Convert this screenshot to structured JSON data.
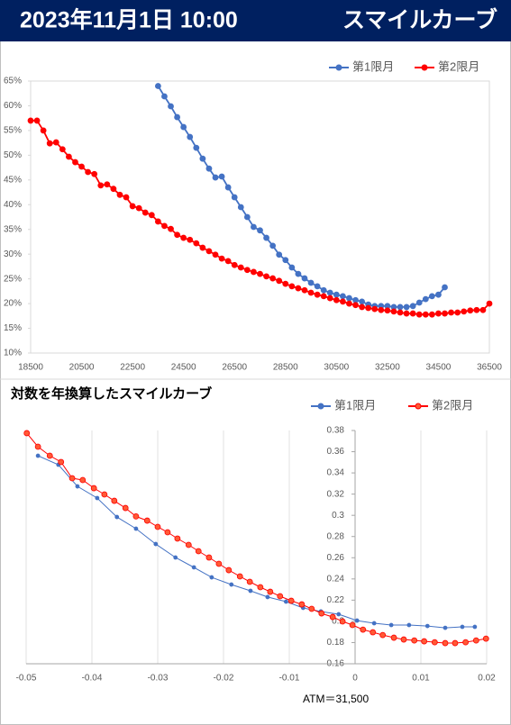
{
  "header": {
    "date": "2023年11月1日 10:00",
    "title": "スマイルカーブ"
  },
  "chart_data": [
    {
      "type": "line",
      "xlim": [
        18500,
        36500
      ],
      "xticks": [
        18500,
        20500,
        22500,
        24500,
        26500,
        28500,
        30500,
        32500,
        34500,
        36500
      ],
      "ylim": [
        10,
        65
      ],
      "yticks": [
        {
          "value": 10,
          "label": "10%"
        },
        {
          "value": 15,
          "label": "15%"
        },
        {
          "value": 20,
          "label": "20%"
        },
        {
          "value": 25,
          "label": "25%"
        },
        {
          "value": 30,
          "label": "30%"
        },
        {
          "value": 35,
          "label": "35%"
        },
        {
          "value": 40,
          "label": "40%"
        },
        {
          "value": 45,
          "label": "45%"
        },
        {
          "value": 50,
          "label": "50%"
        },
        {
          "value": 55,
          "label": "55%"
        },
        {
          "value": 60,
          "label": "60%"
        },
        {
          "value": 65,
          "label": "65%"
        }
      ],
      "grid": false,
      "legend": "top-right",
      "series": [
        {
          "name": "第1限月",
          "color": "#4472c4",
          "x": [
            23500,
            23750,
            24000,
            24250,
            24500,
            24750,
            25000,
            25250,
            25500,
            25750,
            26000,
            26250,
            26500,
            26750,
            27000,
            27250,
            27500,
            27750,
            28000,
            28250,
            28500,
            28750,
            29000,
            29250,
            29500,
            29750,
            30000,
            30250,
            30500,
            30750,
            31000,
            31250,
            31500,
            31750,
            32000,
            32250,
            32500,
            32750,
            33000,
            33250,
            33500,
            33750,
            34000,
            34250,
            34500,
            34750
          ],
          "values": [
            64,
            61.9,
            59.9,
            57.7,
            55.7,
            53.7,
            51.5,
            49.3,
            47.3,
            45.5,
            45.7,
            43.5,
            41.5,
            39.5,
            37.5,
            35.5,
            34.8,
            33.3,
            31.7,
            29.9,
            28.8,
            27.3,
            26,
            25.1,
            24.2,
            23.5,
            22.7,
            22.2,
            21.8,
            21.5,
            21.1,
            20.7,
            20.4,
            19.8,
            19.5,
            19.5,
            19.5,
            19.3,
            19.3,
            19.3,
            19.5,
            20.2,
            20.9,
            21.5,
            21.8,
            23.3
          ]
        },
        {
          "name": "第2限月",
          "color": "#ff0000",
          "x": [
            18500,
            18750,
            19000,
            19250,
            19500,
            19750,
            20000,
            20250,
            20500,
            20750,
            21000,
            21250,
            21500,
            21750,
            22000,
            22250,
            22500,
            22750,
            23000,
            23250,
            23500,
            23750,
            24000,
            24250,
            24500,
            24750,
            25000,
            25250,
            25500,
            25750,
            26000,
            26250,
            26500,
            26750,
            27000,
            27250,
            27500,
            27750,
            28000,
            28250,
            28500,
            28750,
            29000,
            29250,
            29500,
            29750,
            30000,
            30250,
            30500,
            30750,
            31000,
            31250,
            31500,
            31750,
            32000,
            32250,
            32500,
            32750,
            33000,
            33250,
            33500,
            33750,
            34000,
            34250,
            34500,
            34750,
            35000,
            35250,
            35500,
            35750,
            36000,
            36250,
            36500
          ],
          "values": [
            57,
            57,
            55,
            52.4,
            52.6,
            51.2,
            49.7,
            48.6,
            47.7,
            46.6,
            46.2,
            43.9,
            44.1,
            43.2,
            42,
            41.5,
            39.7,
            39.3,
            38.4,
            37.9,
            36.6,
            35.7,
            35.1,
            33.9,
            33.3,
            32.9,
            32.2,
            31.3,
            30.6,
            29.9,
            29.1,
            28.6,
            27.8,
            27.3,
            26.8,
            26.4,
            26,
            25.5,
            25.1,
            24.6,
            24,
            23.5,
            23.1,
            22.7,
            22.2,
            21.8,
            21.5,
            21.1,
            20.7,
            20.4,
            20,
            19.7,
            19.3,
            19.1,
            18.9,
            18.7,
            18.6,
            18.4,
            18.2,
            18,
            18,
            17.8,
            17.8,
            17.8,
            18,
            18,
            18.2,
            18.2,
            18.4,
            18.6,
            18.7,
            18.7,
            20
          ]
        }
      ]
    },
    {
      "type": "line",
      "title": "対数を年換算したスマイルカーブ",
      "annotation": "ATM＝31,500",
      "xlim": [
        -0.05,
        0.02
      ],
      "xticks": [
        -0.05,
        -0.04,
        -0.03,
        -0.02,
        -0.01,
        0,
        0.01,
        0.02
      ],
      "ylim": [
        0.16,
        0.38
      ],
      "yticks": [
        0.16,
        0.18,
        0.2,
        0.22,
        0.24,
        0.26,
        0.28,
        0.3,
        0.32,
        0.34,
        0.36,
        0.38
      ],
      "yaxis_cross": 0,
      "grid": "x",
      "legend": "top-right",
      "series": [
        {
          "name": "第1限月",
          "color": "#4472c4",
          "x": [
            -0.0482,
            -0.0451,
            -0.0422,
            -0.0392,
            -0.0362,
            -0.0333,
            -0.0303,
            -0.0273,
            -0.0245,
            -0.0218,
            -0.0188,
            -0.0159,
            -0.0133,
            -0.0105,
            -0.0079,
            -0.0052,
            -0.0025,
            0.0003,
            0.0029,
            0.0055,
            0.0082,
            0.011,
            0.0137,
            0.0163,
            0.0182
          ],
          "values": [
            0.3562,
            0.3477,
            0.3273,
            0.3163,
            0.2984,
            0.2874,
            0.2729,
            0.2602,
            0.2509,
            0.2415,
            0.2347,
            0.2288,
            0.2229,
            0.2186,
            0.2127,
            0.2093,
            0.2067,
            0.2007,
            0.1982,
            0.1965,
            0.1965,
            0.1956,
            0.1939,
            0.1948,
            0.1948
          ]
        },
        {
          "name": "第2限月",
          "color": "#ff0000",
          "x": [
            -0.0499,
            -0.0482,
            -0.0464,
            -0.0447,
            -0.043,
            -0.0414,
            -0.0397,
            -0.0381,
            -0.0366,
            -0.0349,
            -0.0333,
            -0.0316,
            -0.03,
            -0.0285,
            -0.027,
            -0.0253,
            -0.0238,
            -0.0222,
            -0.0207,
            -0.0192,
            -0.0175,
            -0.016,
            -0.0144,
            -0.0129,
            -0.0114,
            -0.0097,
            -0.0081,
            -0.0066,
            -0.0051,
            -0.0034,
            -0.0019,
            -0.0004,
            0.0012,
            0.0027,
            0.0042,
            0.0059,
            0.0074,
            0.009,
            0.0105,
            0.0121,
            0.0137,
            0.0152,
            0.0168,
            0.0184,
            0.0199
          ],
          "values": [
            0.3775,
            0.3647,
            0.3562,
            0.3503,
            0.335,
            0.3333,
            0.3256,
            0.3197,
            0.3137,
            0.3069,
            0.299,
            0.295,
            0.2891,
            0.284,
            0.2781,
            0.2721,
            0.2662,
            0.2602,
            0.2543,
            0.2483,
            0.2424,
            0.2373,
            0.2322,
            0.2279,
            0.2237,
            0.2194,
            0.216,
            0.2118,
            0.2075,
            0.2041,
            0.1999,
            0.1965,
            0.1922,
            0.1897,
            0.1871,
            0.1846,
            0.1829,
            0.182,
            0.1812,
            0.1803,
            0.1795,
            0.1795,
            0.1803,
            0.182,
            0.1837
          ]
        }
      ]
    }
  ]
}
